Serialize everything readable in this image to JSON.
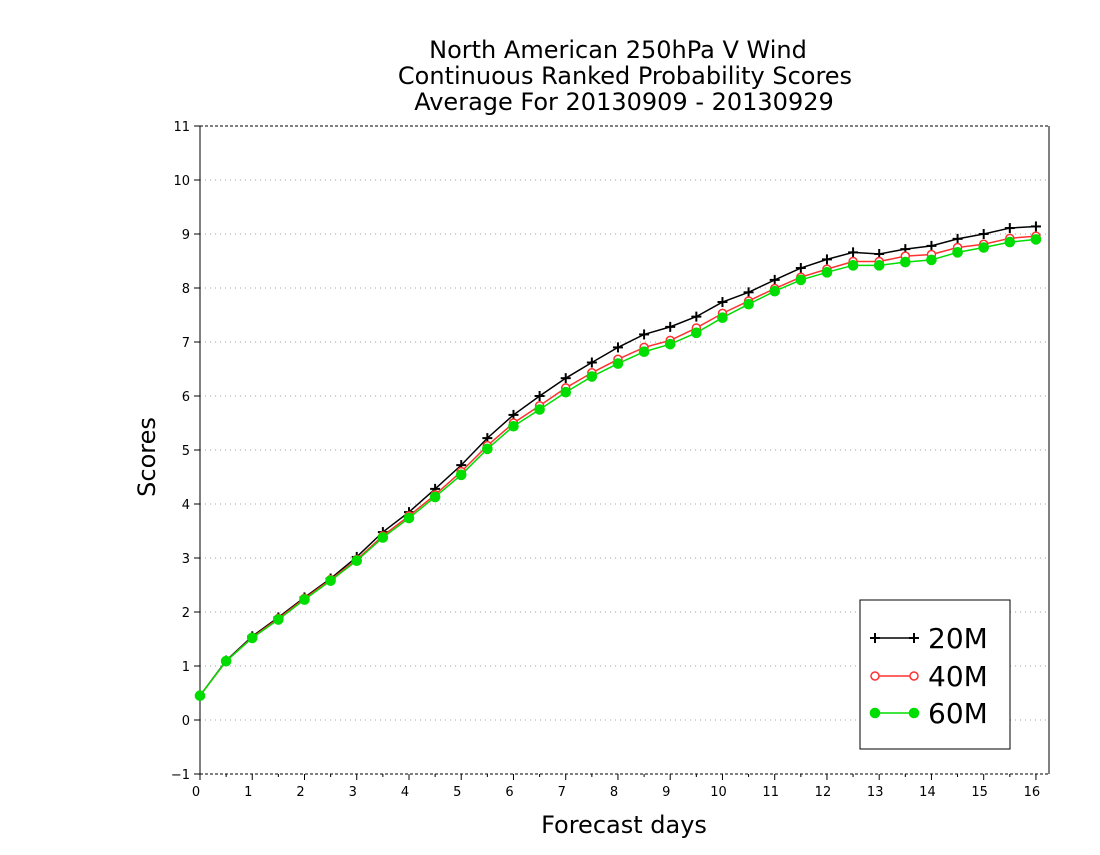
{
  "chart_data": {
    "type": "line",
    "title_lines": [
      "North American 250hPa V Wind",
      "Continuous Ranked Probability Scores",
      "Average For 20130909 - 20130929"
    ],
    "xlabel": "Forecast days",
    "ylabel": "Scores",
    "xlim": [
      0,
      16.25
    ],
    "ylim": [
      -1,
      11
    ],
    "x_ticks": [
      0,
      1,
      2,
      3,
      4,
      5,
      6,
      7,
      8,
      9,
      10,
      11,
      12,
      13,
      14,
      15,
      16
    ],
    "y_ticks": [
      -1,
      0,
      1,
      2,
      3,
      4,
      5,
      6,
      7,
      8,
      9,
      10,
      11
    ],
    "grid": "horizontal dotted",
    "legend_position": "bottom-right",
    "x": [
      0,
      0.5,
      1,
      1.5,
      2,
      2.5,
      3,
      3.5,
      4,
      4.5,
      5,
      5.5,
      6,
      6.5,
      7,
      7.5,
      8,
      8.5,
      9,
      9.5,
      10,
      10.5,
      11,
      11.5,
      12,
      12.5,
      13,
      13.5,
      14,
      14.5,
      15,
      15.5,
      16
    ],
    "series": [
      {
        "name": "20M",
        "color": "#000000",
        "marker": "plus",
        "values": [
          0.45,
          1.1,
          1.55,
          1.9,
          2.27,
          2.62,
          3.02,
          3.48,
          3.85,
          4.28,
          4.72,
          5.22,
          5.65,
          6.0,
          6.33,
          6.62,
          6.9,
          7.14,
          7.28,
          7.47,
          7.74,
          7.92,
          8.15,
          8.37,
          8.53,
          8.66,
          8.63,
          8.72,
          8.78,
          8.91,
          9.0,
          9.11,
          9.14
        ]
      },
      {
        "name": "40M",
        "color": "#ff3030",
        "marker": "open-circle",
        "values": [
          0.45,
          1.09,
          1.53,
          1.88,
          2.25,
          2.6,
          2.97,
          3.41,
          3.78,
          4.17,
          4.6,
          5.08,
          5.5,
          5.82,
          6.15,
          6.43,
          6.68,
          6.9,
          7.03,
          7.26,
          7.53,
          7.76,
          7.99,
          8.2,
          8.35,
          8.49,
          8.49,
          8.59,
          8.62,
          8.75,
          8.81,
          8.92,
          8.96
        ]
      },
      {
        "name": "60M",
        "color": "#00dd00",
        "marker": "filled-circle",
        "values": [
          0.45,
          1.09,
          1.52,
          1.86,
          2.23,
          2.58,
          2.95,
          3.38,
          3.74,
          4.13,
          4.54,
          5.02,
          5.44,
          5.75,
          6.07,
          6.36,
          6.6,
          6.82,
          6.96,
          7.17,
          7.45,
          7.7,
          7.94,
          8.15,
          8.29,
          8.42,
          8.42,
          8.48,
          8.52,
          8.66,
          8.75,
          8.85,
          8.9
        ]
      }
    ]
  }
}
